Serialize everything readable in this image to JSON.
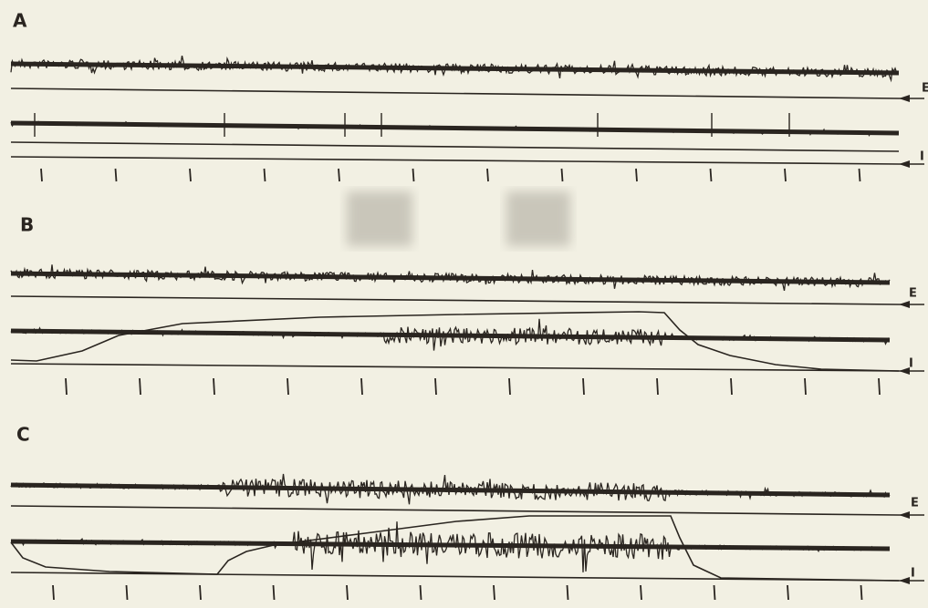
{
  "panels": [
    {
      "label": "A",
      "trace_labels": [
        "E",
        "I"
      ]
    },
    {
      "label": "B",
      "trace_labels": [
        "E",
        "I"
      ]
    },
    {
      "label": "C",
      "trace_labels": [
        "E",
        "I"
      ]
    }
  ]
}
